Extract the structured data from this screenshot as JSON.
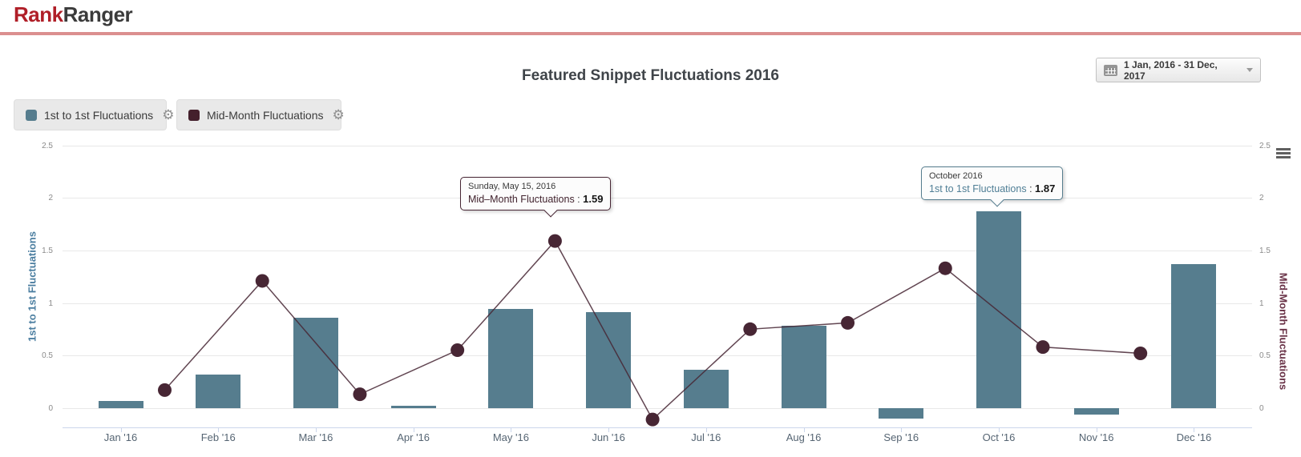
{
  "header": {
    "logo_rank": "Rank",
    "logo_ranger": "Ranger"
  },
  "toolbar": {
    "date_range": "1 Jan, 2016 - 31 Dec, 2017"
  },
  "title": "Featured Snippet Fluctuations 2016",
  "legend": [
    {
      "label": "1st to 1st Fluctuations",
      "color": "#567D8E"
    },
    {
      "label": "Mid-Month Fluctuations",
      "color": "#44202C"
    }
  ],
  "icons": {
    "legend_settings": "gear-icon",
    "date_picker": "calendar-icon",
    "date_picker_caret": "chevron-down-icon",
    "chart_menu": "hamburger-menu-icon"
  },
  "colors": {
    "brand_red": "#B01F28",
    "brand_dark": "#3B3B3B",
    "header_divider": "#DB8F8F",
    "bar_series": "#567D8E",
    "line_series": "#472634",
    "left_axis_title": "#4B7EA0",
    "right_axis_title": "#693247"
  },
  "chart_data": {
    "type": "bar+line combo, dual y-axis",
    "title": "Featured Snippet Fluctuations 2016",
    "categories": [
      "Jan '16",
      "Feb '16",
      "Mar '16",
      "Apr '16",
      "May '16",
      "Jun '16",
      "Jul '16",
      "Aug '16",
      "Sep '16",
      "Oct '16",
      "Nov '16",
      "Dec '16"
    ],
    "yticks": [
      0,
      0.5,
      1,
      1.5,
      2,
      2.5
    ],
    "ylim": [
      -0.25,
      2.6
    ],
    "grid": true,
    "legend_position": "top-left",
    "ylabel_left": "1st to 1st Fluctuations",
    "ylabel_right": "Mid-Month Fluctuations",
    "series": [
      {
        "name": "1st to 1st Fluctuations",
        "type": "bar",
        "axis": "left",
        "color": "#567D8E",
        "values": [
          0.07,
          0.32,
          0.86,
          0.02,
          0.94,
          0.91,
          0.36,
          0.78,
          -0.1,
          1.87,
          -0.06,
          1.37
        ]
      },
      {
        "name": "Mid-Month Fluctuations",
        "type": "line",
        "axis": "right",
        "color": "#472634",
        "x_offset_months": 0.45,
        "values": [
          0.17,
          1.21,
          0.13,
          0.55,
          1.59,
          -0.11,
          0.75,
          0.81,
          1.33,
          0.58,
          0.52
        ]
      }
    ]
  },
  "tooltips": [
    {
      "title": "Sunday, May 15, 2016",
      "series": "Mid–Month Fluctuations",
      "separator": " : ",
      "value": "1.59",
      "border_color": "#472634",
      "series_color": "#41232e",
      "anchor_month_index": 4
    },
    {
      "title": "October 2016",
      "series": "1st to 1st Fluctuations",
      "separator": " : ",
      "value": "1.87",
      "border_color": "#567D8E",
      "series_color": "#4f7e95",
      "anchor_month_index": 9
    }
  ]
}
